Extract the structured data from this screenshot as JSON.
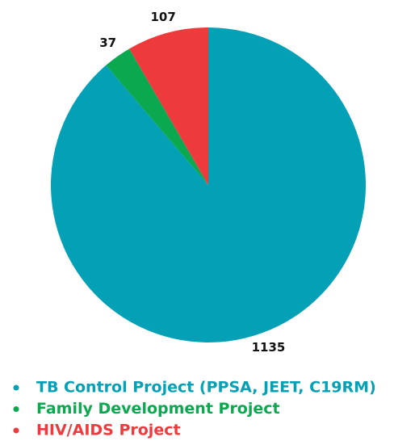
{
  "chart_data": {
    "type": "pie",
    "categories": [
      "TB Control Project (PPSA, JEET, C19RM)",
      "Family Development Project",
      "HIV/AIDS Project"
    ],
    "values": [
      1135,
      37,
      107
    ],
    "colors": [
      "#03a0b6",
      "#0aa84f",
      "#ee3a3d"
    ],
    "legend": "bottom"
  }
}
